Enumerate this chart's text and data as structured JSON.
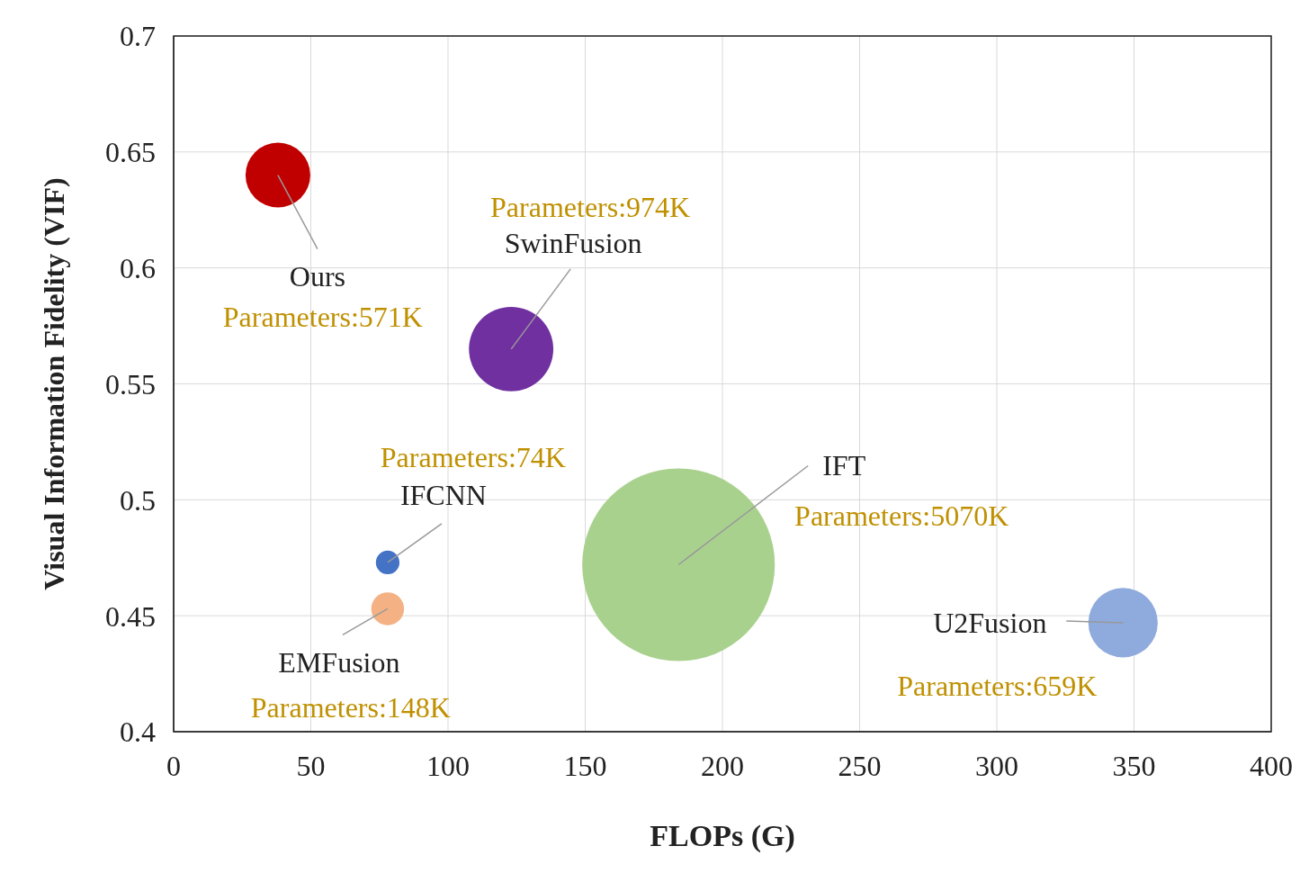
{
  "chart_data": {
    "type": "bubble",
    "xlabel": "FLOPs (G)",
    "ylabel": "Visual Information Fidelity (VIF)",
    "xlim": [
      0,
      400
    ],
    "xticks": [
      0,
      50,
      100,
      150,
      200,
      250,
      300,
      350,
      400
    ],
    "ylim": [
      0.4,
      0.7
    ],
    "yticks": [
      0.4,
      0.45,
      0.5,
      0.55,
      0.6,
      0.65,
      0.7
    ],
    "grid": true,
    "marker": "circle",
    "series": [
      {
        "name": "Ours",
        "color": "#c00000",
        "x": [
          38
        ],
        "values": [
          0.64
        ],
        "sizes": [
          0.113
        ]
      },
      {
        "name": "SwinFusion",
        "color": "#7030a0",
        "x": [
          123
        ],
        "values": [
          0.565
        ],
        "sizes": [
          0.192
        ]
      },
      {
        "name": "IFCNN",
        "color": "#4472c4",
        "x": [
          78
        ],
        "values": [
          0.473
        ],
        "sizes": [
          0.015
        ]
      },
      {
        "name": "EMFusion",
        "color": "#f4b183",
        "x": [
          78
        ],
        "values": [
          0.453
        ],
        "sizes": [
          0.029
        ]
      },
      {
        "name": "IFT",
        "color": "#a9d18e",
        "x": [
          184
        ],
        "values": [
          0.472
        ],
        "sizes": [
          1
        ]
      },
      {
        "name": "U2Fusion",
        "color": "#8faadc",
        "x": [
          346
        ],
        "values": [
          0.447
        ],
        "sizes": [
          0.13
        ]
      }
    ],
    "annotations": [
      "Parameters:571K",
      "Parameters:974K",
      "Parameters:74K",
      "Parameters:148K",
      {
        "text": "Parameters:5070K",
        "x": 184,
        "y": 0.472
      },
      "Parameters:659K"
    ]
  }
}
